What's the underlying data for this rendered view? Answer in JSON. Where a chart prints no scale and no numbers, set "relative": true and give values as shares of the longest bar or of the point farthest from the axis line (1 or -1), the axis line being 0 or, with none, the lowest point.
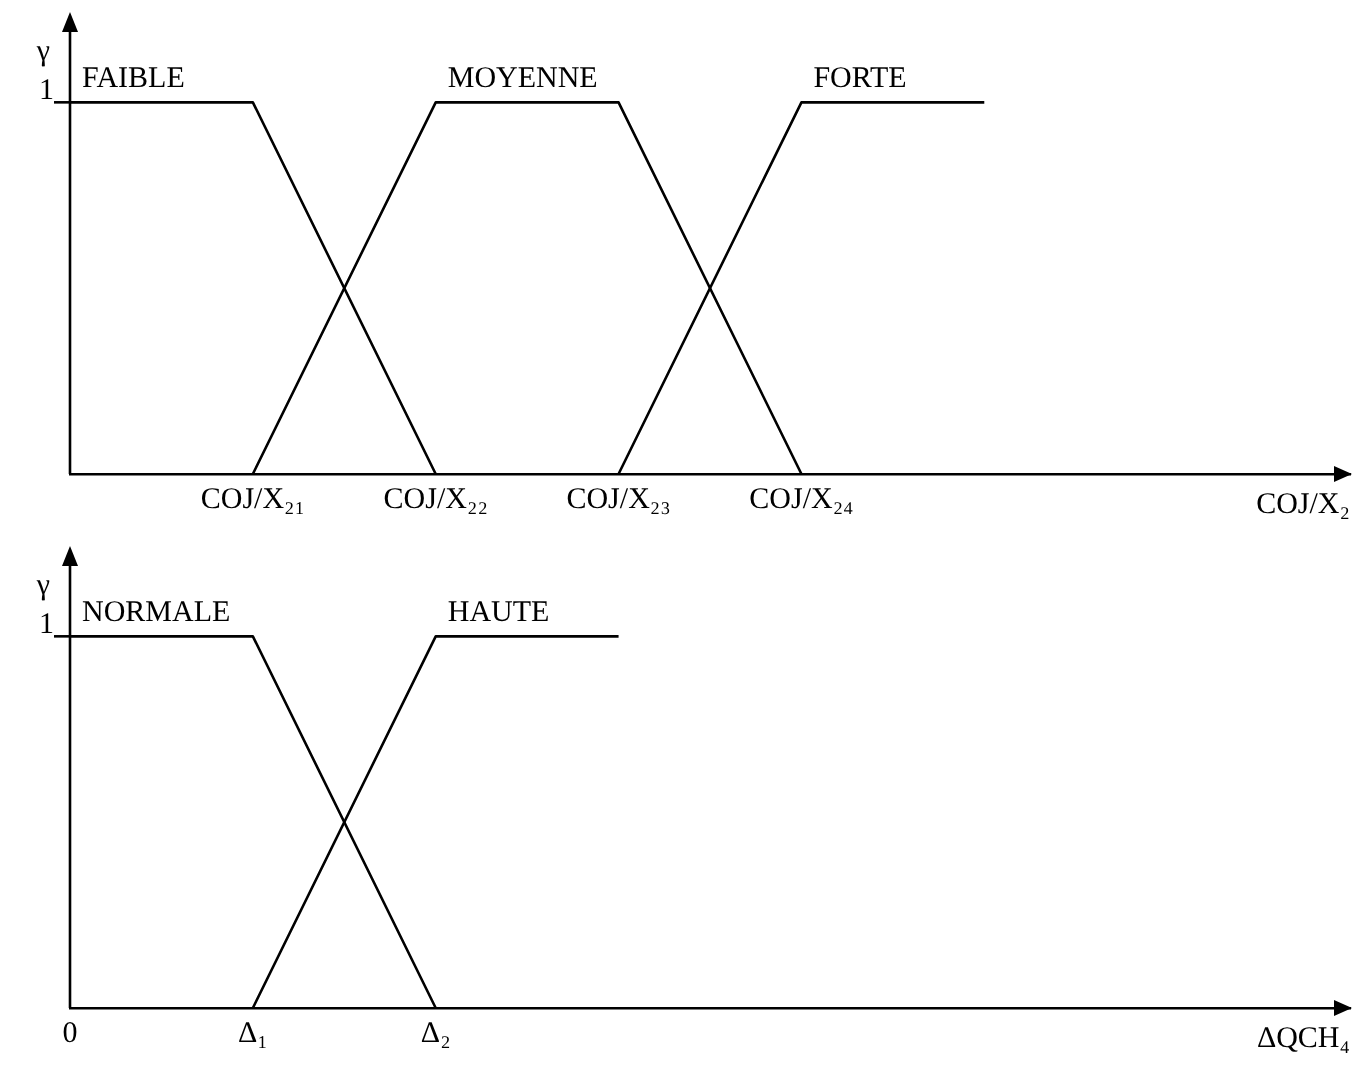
{
  "chart_data": [
    {
      "type": "line",
      "relative": true,
      "xlabel": "COJ/X₂",
      "ylabel": "γ",
      "categories": [
        null,
        "COJ/X₂₁",
        "COJ/X₂₂",
        "COJ/X₂₃",
        "COJ/X₂₄",
        null,
        null,
        null
      ],
      "annotations": [
        "1"
      ],
      "grid": false,
      "marker": "none",
      "line_style": "solid",
      "series": [
        {
          "name": "FAIBLE",
          "color": "#000000",
          "values": [
            1,
            1,
            0,
            null,
            null,
            null,
            null,
            null
          ]
        },
        {
          "name": "MOYENNE",
          "color": "#000000",
          "values": [
            null,
            0,
            1,
            1,
            0,
            null,
            null,
            null
          ]
        },
        {
          "name": "FORTE",
          "color": "#000000",
          "values": [
            null,
            null,
            null,
            0,
            1,
            1,
            null,
            null
          ]
        }
      ]
    },
    {
      "type": "line",
      "relative": true,
      "xlabel": "ΔQCH₄",
      "ylabel": "γ",
      "categories": [
        "0",
        "Δ₁",
        "Δ₂",
        null,
        null,
        null,
        null,
        null
      ],
      "annotations": [
        "1"
      ],
      "grid": false,
      "marker": "none",
      "line_style": "solid",
      "series": [
        {
          "name": "NORMALE",
          "color": "#000000",
          "values": [
            1,
            1,
            0,
            null,
            null,
            null,
            null,
            null
          ]
        },
        {
          "name": "HAUTE",
          "color": "#000000",
          "values": [
            null,
            0,
            1,
            1,
            null,
            null,
            null,
            null
          ]
        }
      ]
    }
  ]
}
